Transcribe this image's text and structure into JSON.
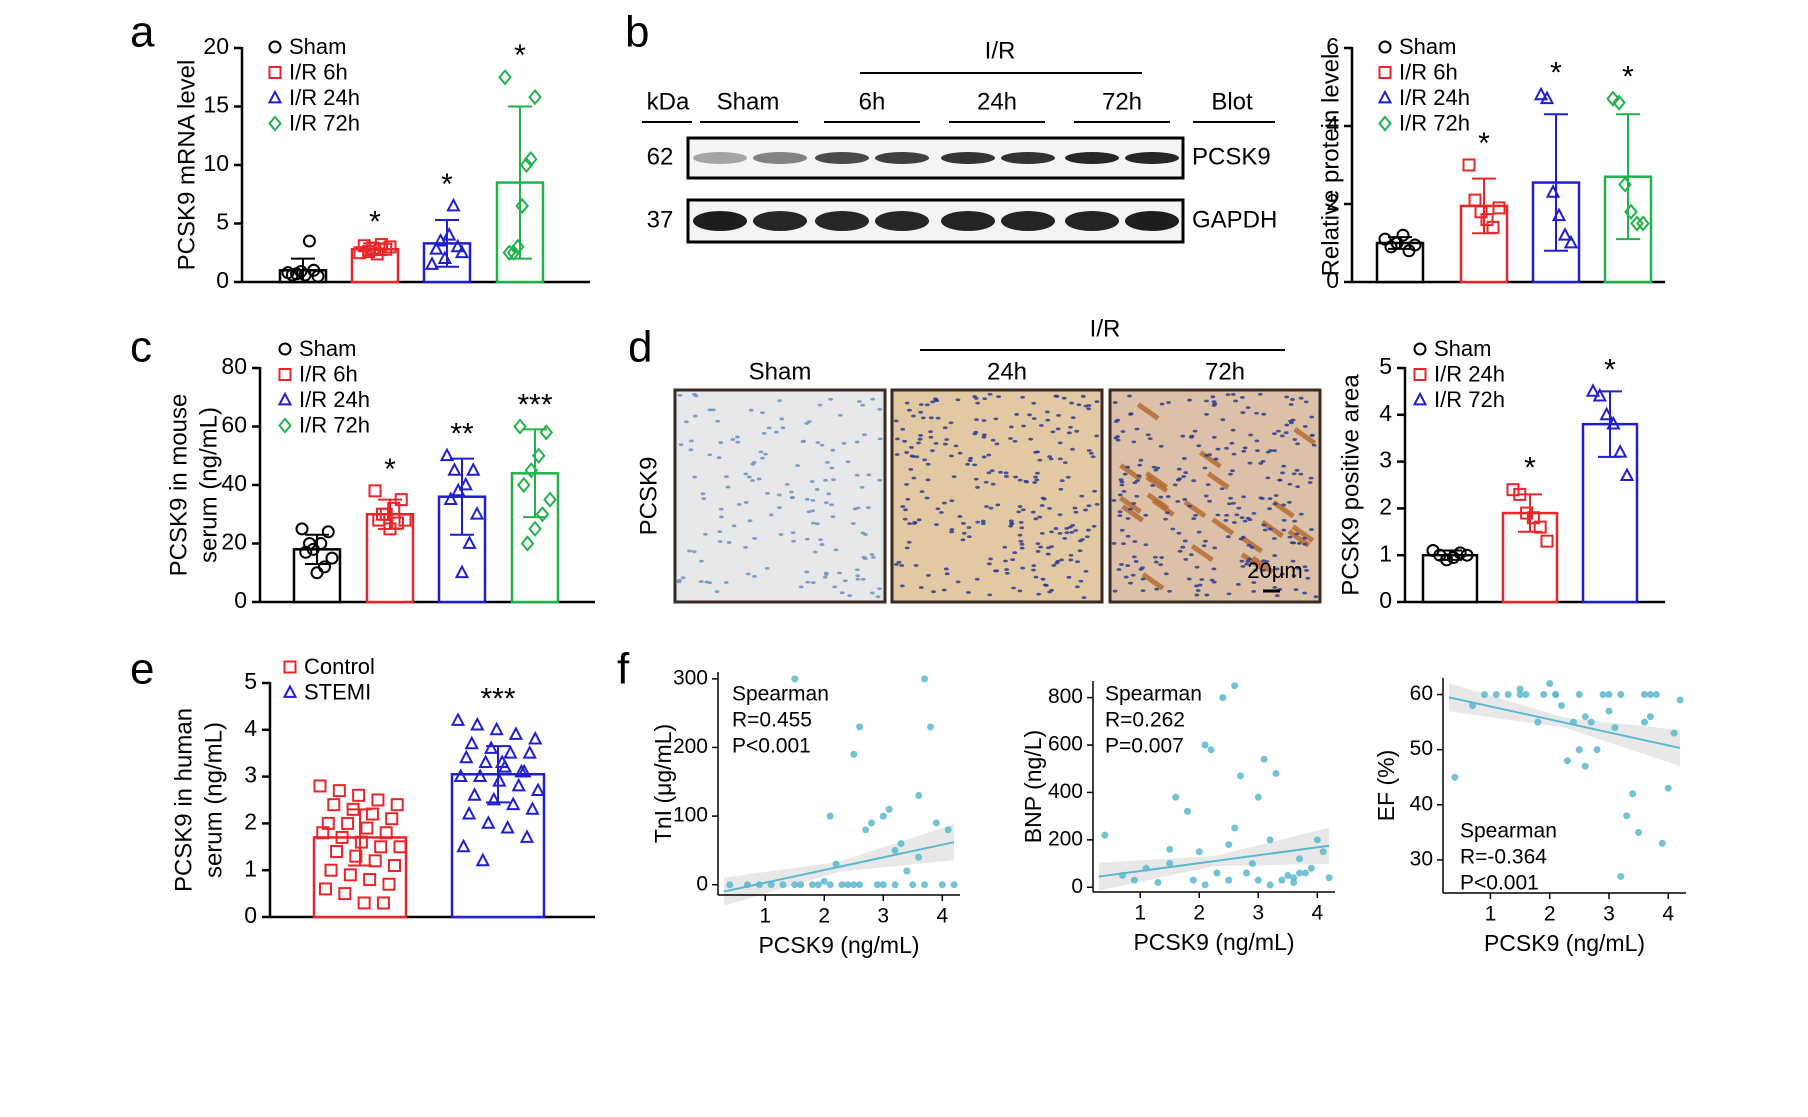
{
  "panels": [
    "a",
    "b",
    "c",
    "d",
    "e",
    "f"
  ],
  "blot": {
    "kda_label": "kDa",
    "sham": "Sham",
    "ir": "I/R",
    "times": [
      "6h",
      "24h",
      "72h"
    ],
    "blot_label": "Blot",
    "bands": [
      {
        "kda": "62",
        "protein": "PCSK9"
      },
      {
        "kda": "37",
        "protein": "GAPDH"
      }
    ]
  },
  "histology": {
    "row_label": "PCSK9",
    "columns": [
      "Sham",
      "24h",
      "72h"
    ],
    "ir": "I/R",
    "scale": "20μm"
  },
  "chart_data": [
    {
      "type": "dotbar",
      "ylabel": [
        "PCSK9 mRNA level"
      ],
      "ylim": [
        0,
        20
      ],
      "yticks": [
        0,
        5,
        10,
        15,
        20
      ],
      "series": [
        {
          "name": "Sham",
          "color": "#000000",
          "marker": "circle",
          "mean": 1.0,
          "sd": 1.0,
          "values": [
            0.8,
            0.5,
            1.0,
            3.5,
            0.6,
            0.9,
            0.7,
            0.6
          ]
        },
        {
          "name": "I/R 6h",
          "color": "#e8262a",
          "marker": "square",
          "mean": 2.8,
          "sd": 0.5,
          "annotation": "*",
          "values": [
            2.5,
            3.0,
            2.8,
            3.2,
            2.4,
            2.9,
            2.6,
            3.1
          ]
        },
        {
          "name": "I/R 24h",
          "color": "#1f1fd0",
          "marker": "triangle",
          "mean": 3.3,
          "sd": 2.0,
          "annotation": "*",
          "values": [
            1.5,
            2.5,
            3.0,
            6.5,
            4.0,
            2.0,
            3.5,
            2.8
          ]
        },
        {
          "name": "I/R 72h",
          "color": "#22b24c",
          "marker": "diamond",
          "mean": 8.5,
          "sd": 6.5,
          "annotation": "*",
          "values": [
            17.5,
            15.8,
            10.5,
            10.0,
            6.5,
            3.0,
            2.5,
            2.5
          ]
        }
      ]
    },
    {
      "type": "dotbar",
      "ylabel": [
        "Relative protein level"
      ],
      "ylim": [
        0,
        6
      ],
      "yticks": [
        0,
        2,
        4,
        6
      ],
      "series": [
        {
          "name": "Sham",
          "color": "#000000",
          "marker": "circle",
          "mean": 1.0,
          "sd": 0.15,
          "values": [
            1.1,
            0.9,
            1.0,
            1.2,
            0.8,
            0.95
          ]
        },
        {
          "name": "I/R 6h",
          "color": "#e8262a",
          "marker": "square",
          "mean": 1.95,
          "sd": 0.7,
          "annotation": "*",
          "values": [
            3.0,
            2.1,
            1.8,
            1.6,
            1.4,
            1.9
          ]
        },
        {
          "name": "I/R 24h",
          "color": "#1f1fd0",
          "marker": "triangle",
          "mean": 2.55,
          "sd": 1.75,
          "annotation": "*",
          "values": [
            4.8,
            4.7,
            2.3,
            1.7,
            1.2,
            1.0
          ]
        },
        {
          "name": "I/R 72h",
          "color": "#22b24c",
          "marker": "diamond",
          "mean": 2.7,
          "sd": 1.6,
          "annotation": "*",
          "values": [
            4.7,
            4.6,
            2.5,
            1.8,
            1.5,
            1.5
          ]
        }
      ]
    },
    {
      "type": "dotbar",
      "ylabel": [
        "PCSK9 in mouse",
        "serum (ng/mL)"
      ],
      "ylim": [
        0,
        80
      ],
      "yticks": [
        0,
        20,
        40,
        60,
        80
      ],
      "series": [
        {
          "name": "Sham",
          "color": "#000000",
          "marker": "circle",
          "mean": 18,
          "sd": 5,
          "values": [
            25,
            24,
            20,
            18,
            17,
            15,
            12,
            10,
            20
          ]
        },
        {
          "name": "I/R 6h",
          "color": "#e8262a",
          "marker": "square",
          "mean": 30,
          "sd": 5,
          "annotation": "*",
          "values": [
            38,
            35,
            32,
            30,
            28,
            28,
            27,
            25,
            30
          ]
        },
        {
          "name": "I/R 24h",
          "color": "#1f1fd0",
          "marker": "triangle",
          "mean": 36,
          "sd": 13,
          "annotation": "**",
          "values": [
            50,
            45,
            40,
            38,
            35,
            30,
            20,
            10,
            45
          ]
        },
        {
          "name": "I/R 72h",
          "color": "#22b24c",
          "marker": "diamond",
          "mean": 44,
          "sd": 15,
          "annotation": "***",
          "values": [
            60,
            58,
            50,
            45,
            40,
            35,
            30,
            25,
            20
          ]
        }
      ]
    },
    {
      "type": "dotbar",
      "ylabel": [
        "PCSK9 positive area"
      ],
      "ylim": [
        0,
        5
      ],
      "yticks": [
        0,
        1,
        2,
        3,
        4,
        5
      ],
      "series": [
        {
          "name": "Sham",
          "color": "#000000",
          "marker": "circle",
          "mean": 1.0,
          "sd": 0.1,
          "values": [
            1.1,
            1.0,
            0.9,
            0.95,
            1.05,
            1.0
          ]
        },
        {
          "name": "I/R 24h",
          "color": "#e8262a",
          "marker": "square",
          "mean": 1.9,
          "sd": 0.4,
          "annotation": "*",
          "values": [
            2.4,
            2.3,
            1.9,
            1.8,
            1.6,
            1.3
          ]
        },
        {
          "name": "I/R 72h",
          "color": "#1f1fd0",
          "marker": "triangle",
          "mean": 3.8,
          "sd": 0.7,
          "annotation": "*",
          "values": [
            4.5,
            4.4,
            4.0,
            3.8,
            3.2,
            2.7
          ]
        }
      ]
    },
    {
      "type": "dotbar",
      "ylabel": [
        "PCSK9 in human",
        "serum (ng/mL)"
      ],
      "ylim": [
        0,
        5
      ],
      "yticks": [
        0,
        1,
        2,
        3,
        4,
        5
      ],
      "series": [
        {
          "name": "Control",
          "color": "#e8262a",
          "marker": "square",
          "mean": 1.7,
          "sd": 0.6,
          "values": [
            2.8,
            2.7,
            2.6,
            2.5,
            2.4,
            2.4,
            2.3,
            2.2,
            2.1,
            2.0,
            2.0,
            1.9,
            1.8,
            1.8,
            1.7,
            1.6,
            1.5,
            1.5,
            1.4,
            1.3,
            1.2,
            1.1,
            1.0,
            0.9,
            0.8,
            0.7,
            0.6,
            0.5,
            0.3,
            0.3
          ]
        },
        {
          "name": "STEMI",
          "color": "#1f1fd0",
          "marker": "triangle",
          "mean": 3.05,
          "sd": 0.6,
          "annotation": "***",
          "values": [
            4.2,
            4.1,
            4.0,
            3.9,
            3.8,
            3.7,
            3.6,
            3.5,
            3.5,
            3.4,
            3.3,
            3.2,
            3.1,
            3.0,
            3.0,
            2.9,
            2.8,
            2.7,
            2.6,
            2.5,
            2.4,
            2.3,
            2.2,
            2.0,
            1.9,
            1.7,
            1.5,
            1.2,
            3.3,
            3.1
          ]
        }
      ]
    },
    {
      "type": "scatter",
      "xlabel": "PCSK9 (ng/mL)",
      "ylabel": "TnI (μg/mL)",
      "color": "#5bb8d0",
      "xlim": [
        0.2,
        4.3
      ],
      "xticks": [
        1,
        2,
        3,
        4
      ],
      "ylim": [
        -15,
        310
      ],
      "yticks": [
        0,
        100,
        200,
        300
      ],
      "annotation": [
        "Spearman",
        "R=0.455",
        "P<0.001"
      ],
      "trend": {
        "x": [
          0.3,
          4.2
        ],
        "y": [
          -10,
          62
        ]
      },
      "x": [
        0.4,
        0.7,
        0.9,
        1.1,
        1.3,
        1.5,
        1.6,
        1.8,
        1.9,
        2.0,
        2.1,
        2.2,
        2.3,
        2.4,
        2.5,
        2.6,
        2.7,
        2.8,
        2.9,
        3.0,
        3.1,
        3.2,
        3.3,
        3.4,
        3.5,
        3.6,
        3.7,
        3.8,
        3.9,
        4.0,
        4.1,
        1.5,
        2.5,
        2.6,
        3.6,
        3.7,
        3.2,
        3.0,
        2.1,
        4.2
      ],
      "values": [
        0,
        0,
        0,
        0,
        0,
        300,
        0,
        0,
        0,
        5,
        100,
        30,
        0,
        0,
        190,
        230,
        80,
        90,
        0,
        100,
        110,
        0,
        60,
        20,
        0,
        40,
        300,
        230,
        90,
        0,
        80,
        0,
        0,
        0,
        130,
        0,
        50,
        0,
        0,
        0
      ]
    },
    {
      "type": "scatter",
      "xlabel": "PCSK9 (ng/mL)",
      "ylabel": "BNP (ng/L)",
      "color": "#5bb8d0",
      "xlim": [
        0.2,
        4.3
      ],
      "xticks": [
        1,
        2,
        3,
        4
      ],
      "ylim": [
        -20,
        870
      ],
      "yticks": [
        0,
        200,
        400,
        600,
        800
      ],
      "annotation": [
        "Spearman",
        "R=0.262",
        "P=0.007"
      ],
      "trend": {
        "x": [
          0.3,
          4.2
        ],
        "y": [
          45,
          175
        ]
      },
      "x": [
        0.4,
        0.7,
        0.9,
        1.1,
        1.3,
        1.5,
        1.6,
        1.8,
        1.9,
        2.0,
        2.1,
        2.2,
        2.3,
        2.4,
        2.5,
        2.6,
        2.7,
        2.8,
        2.9,
        3.0,
        3.1,
        3.2,
        3.3,
        3.4,
        3.5,
        3.6,
        3.7,
        3.8,
        3.9,
        4.0,
        4.1,
        1.5,
        2.5,
        2.6,
        3.6,
        3.7,
        3.2,
        3.0,
        2.1,
        4.2
      ],
      "values": [
        220,
        50,
        30,
        80,
        20,
        100,
        380,
        320,
        30,
        150,
        10,
        580,
        60,
        800,
        30,
        250,
        470,
        60,
        100,
        380,
        540,
        200,
        480,
        30,
        50,
        20,
        120,
        60,
        80,
        200,
        150,
        160,
        180,
        850,
        40,
        60,
        10,
        30,
        600,
        40
      ]
    },
    {
      "type": "scatter",
      "xlabel": "PCSK9 (ng/mL)",
      "ylabel": "EF (%)",
      "color": "#5bb8d0",
      "xlim": [
        0.2,
        4.3
      ],
      "xticks": [
        1,
        2,
        3,
        4
      ],
      "ylim": [
        24,
        63
      ],
      "yticks": [
        30,
        40,
        50,
        60
      ],
      "annotation": [
        "Spearman",
        "R=-0.364",
        "P<0.001"
      ],
      "trend": {
        "x": [
          0.3,
          4.2
        ],
        "y": [
          59.5,
          50.3
        ]
      },
      "x": [
        0.4,
        0.7,
        0.9,
        1.1,
        1.3,
        1.5,
        1.6,
        1.8,
        1.9,
        2.0,
        2.1,
        2.2,
        2.3,
        2.4,
        2.5,
        2.6,
        2.7,
        2.8,
        2.9,
        3.0,
        3.1,
        3.2,
        3.3,
        3.4,
        3.5,
        3.6,
        3.7,
        3.8,
        3.9,
        4.0,
        4.1,
        1.5,
        2.5,
        2.6,
        3.6,
        3.7,
        3.2,
        3.0,
        2.1,
        4.2
      ],
      "values": [
        45,
        58,
        60,
        60,
        60,
        61,
        60,
        55,
        60,
        62,
        60,
        58,
        48,
        55,
        60,
        56,
        55,
        50,
        60,
        57,
        54,
        60,
        38,
        42,
        35,
        55,
        56,
        60,
        33,
        43,
        53,
        60,
        50,
        47,
        60,
        60,
        27,
        60,
        60,
        59
      ]
    }
  ]
}
